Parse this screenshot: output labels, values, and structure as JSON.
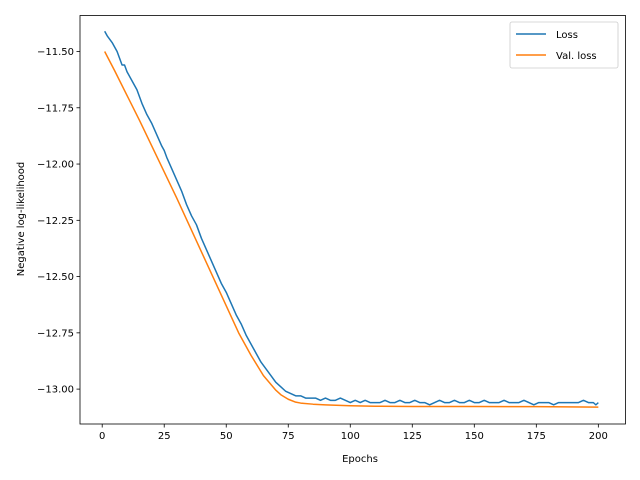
{
  "chart_data": {
    "type": "line",
    "title": "",
    "xlabel": "Epochs",
    "ylabel": "Negative log-likelihood",
    "xlim": [
      -8.95,
      210.95
    ],
    "ylim": [
      -13.155,
      -11.34
    ],
    "xticks": [
      0,
      25,
      50,
      75,
      100,
      125,
      150,
      175,
      200
    ],
    "yticks": [
      -13.0,
      -12.75,
      -12.5,
      -12.25,
      -12.0,
      -11.75,
      -11.5
    ],
    "ytick_labels": [
      "−13.00",
      "−12.75",
      "−12.50",
      "−12.25",
      "−12.00",
      "−11.75",
      "−11.50"
    ],
    "grid": false,
    "legend": "upper-right",
    "series": [
      {
        "name": "Loss",
        "color": "#1f77b4",
        "x": [
          1,
          2,
          4,
          6,
          8,
          9,
          10,
          12,
          14,
          16,
          18,
          20,
          22,
          24,
          25,
          26,
          28,
          30,
          32,
          34,
          36,
          38,
          40,
          42,
          44,
          46,
          48,
          50,
          52,
          54,
          56,
          58,
          60,
          62,
          64,
          66,
          68,
          70,
          72,
          74,
          76,
          78,
          80,
          82,
          84,
          86,
          88,
          90,
          92,
          94,
          96,
          98,
          100,
          102,
          104,
          106,
          108,
          110,
          112,
          114,
          116,
          118,
          120,
          122,
          124,
          126,
          128,
          130,
          132,
          134,
          136,
          138,
          140,
          142,
          144,
          146,
          148,
          150,
          152,
          154,
          156,
          158,
          160,
          162,
          164,
          166,
          168,
          170,
          172,
          174,
          176,
          178,
          180,
          182,
          184,
          186,
          188,
          190,
          192,
          194,
          196,
          198,
          199,
          200
        ],
        "y": [
          -11.41,
          -11.43,
          -11.46,
          -11.5,
          -11.56,
          -11.56,
          -11.59,
          -11.63,
          -11.67,
          -11.73,
          -11.78,
          -11.82,
          -11.87,
          -11.92,
          -11.94,
          -11.97,
          -12.02,
          -12.07,
          -12.12,
          -12.18,
          -12.23,
          -12.27,
          -12.33,
          -12.38,
          -12.43,
          -12.48,
          -12.53,
          -12.57,
          -12.62,
          -12.67,
          -12.71,
          -12.76,
          -12.8,
          -12.84,
          -12.88,
          -12.91,
          -12.94,
          -12.97,
          -12.99,
          -13.01,
          -13.02,
          -13.03,
          -13.03,
          -13.04,
          -13.04,
          -13.04,
          -13.05,
          -13.04,
          -13.05,
          -13.05,
          -13.04,
          -13.05,
          -13.06,
          -13.05,
          -13.06,
          -13.05,
          -13.06,
          -13.06,
          -13.06,
          -13.05,
          -13.06,
          -13.06,
          -13.05,
          -13.06,
          -13.06,
          -13.05,
          -13.06,
          -13.06,
          -13.07,
          -13.06,
          -13.05,
          -13.06,
          -13.06,
          -13.05,
          -13.06,
          -13.06,
          -13.05,
          -13.06,
          -13.06,
          -13.05,
          -13.06,
          -13.06,
          -13.06,
          -13.05,
          -13.06,
          -13.06,
          -13.06,
          -13.05,
          -13.06,
          -13.07,
          -13.06,
          -13.06,
          -13.06,
          -13.07,
          -13.06,
          -13.06,
          -13.06,
          -13.06,
          -13.06,
          -13.05,
          -13.06,
          -13.06,
          -13.07,
          -13.06
        ]
      },
      {
        "name": "Val. loss",
        "color": "#ff7f0e",
        "x": [
          1,
          5,
          10,
          15,
          20,
          25,
          30,
          35,
          40,
          45,
          50,
          55,
          60,
          65,
          70,
          72,
          75,
          78,
          80,
          85,
          90,
          100,
          110,
          125,
          150,
          175,
          200
        ],
        "y": [
          -11.5,
          -11.585,
          -11.695,
          -11.805,
          -11.92,
          -12.035,
          -12.15,
          -12.27,
          -12.39,
          -12.51,
          -12.63,
          -12.75,
          -12.85,
          -12.94,
          -13.005,
          -13.025,
          -13.045,
          -13.058,
          -13.062,
          -13.067,
          -13.07,
          -13.074,
          -13.076,
          -13.077,
          -13.077,
          -13.078,
          -13.08
        ]
      }
    ]
  }
}
